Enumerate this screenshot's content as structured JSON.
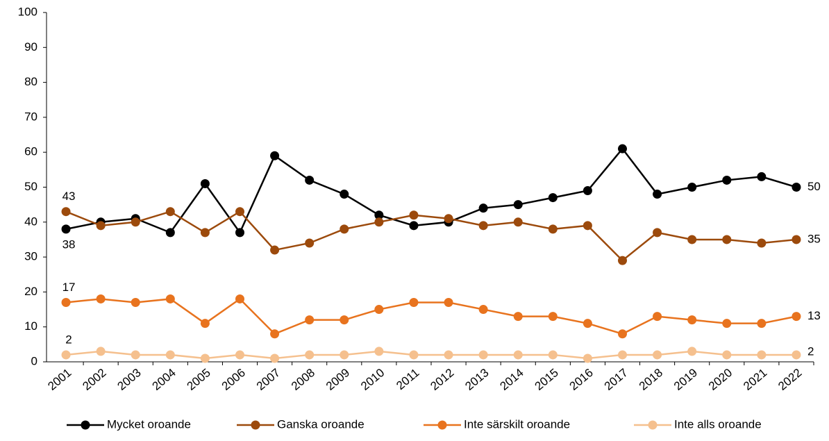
{
  "chart_data": {
    "type": "line",
    "categories": [
      "2001",
      "2002",
      "2003",
      "2004",
      "2005",
      "2006",
      "2007",
      "2008",
      "2009",
      "2010",
      "2011",
      "2012",
      "2013",
      "2014",
      "2015",
      "2016",
      "2017",
      "2018",
      "2019",
      "2020",
      "2021",
      "2022"
    ],
    "series": [
      {
        "name": "Mycket oroande",
        "color": "#000000",
        "values": [
          38,
          40,
          41,
          37,
          51,
          37,
          59,
          52,
          48,
          42,
          39,
          40,
          44,
          45,
          47,
          49,
          61,
          48,
          50,
          52,
          53,
          50
        ]
      },
      {
        "name": "Ganska oroande",
        "color": "#9c4a0c",
        "values": [
          43,
          39,
          40,
          43,
          37,
          43,
          32,
          34,
          38,
          40,
          42,
          41,
          39,
          40,
          38,
          39,
          29,
          37,
          35,
          35,
          34,
          35
        ]
      },
      {
        "name": "Inte särskilt oroande",
        "color": "#e8731e",
        "values": [
          17,
          18,
          17,
          18,
          11,
          18,
          8,
          12,
          12,
          15,
          17,
          17,
          15,
          13,
          13,
          11,
          8,
          13,
          12,
          11,
          11,
          13
        ]
      },
      {
        "name": "Inte alls oroande",
        "color": "#f5c08e",
        "values": [
          2,
          3,
          2,
          2,
          1,
          2,
          1,
          2,
          2,
          3,
          2,
          2,
          2,
          2,
          2,
          1,
          2,
          2,
          3,
          2,
          2,
          2
        ]
      }
    ],
    "ylim": [
      0,
      100
    ],
    "yticks": [
      0,
      10,
      20,
      30,
      40,
      50,
      60,
      70,
      80,
      90,
      100
    ],
    "grid": false,
    "legend": "bottom",
    "data_labels": "first-last"
  }
}
